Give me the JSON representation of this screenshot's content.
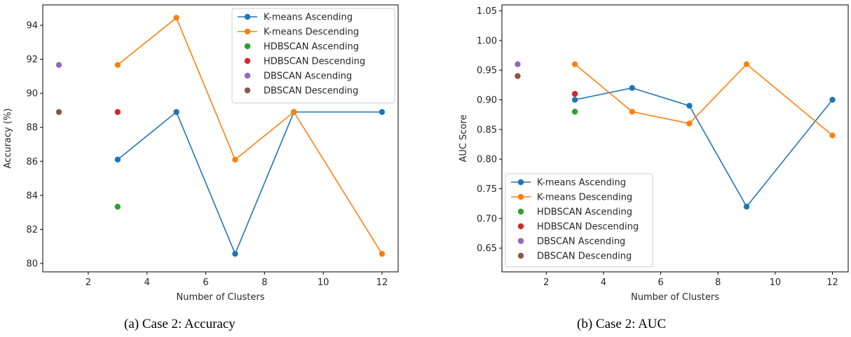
{
  "captions": [
    "(a) Case 2: Accuracy",
    "(b) Case 2: AUC"
  ],
  "chart_data": [
    {
      "type": "line",
      "xlabel": "Number of Clusters",
      "ylabel": "Accuracy (%)",
      "xlim": [
        0.45,
        12.55
      ],
      "ylim": [
        79.5,
        95.2
      ],
      "xticks": [
        2,
        4,
        6,
        8,
        10,
        12
      ],
      "yticks": [
        80,
        82,
        84,
        86,
        88,
        90,
        92,
        94
      ],
      "ytick_decimals": 0,
      "legend_position": "upper right",
      "series": [
        {
          "name": "K-means Ascending",
          "mode": "line",
          "color": "#1f77b4",
          "x": [
            3,
            5,
            7,
            9,
            12
          ],
          "y": [
            86.1,
            88.9,
            80.56,
            88.9,
            88.9
          ]
        },
        {
          "name": "K-means Descending",
          "mode": "line",
          "color": "#ff7f0e",
          "x": [
            3,
            5,
            7,
            9,
            12
          ],
          "y": [
            91.67,
            94.44,
            86.1,
            88.9,
            80.56
          ]
        },
        {
          "name": "HDBSCAN Ascending",
          "mode": "point",
          "color": "#2ca02c",
          "x": [
            3
          ],
          "y": [
            83.33
          ]
        },
        {
          "name": "HDBSCAN Descending",
          "mode": "point",
          "color": "#d62728",
          "x": [
            3
          ],
          "y": [
            88.9
          ]
        },
        {
          "name": "DBSCAN Ascending",
          "mode": "point",
          "color": "#9467bd",
          "x": [
            1
          ],
          "y": [
            91.67
          ]
        },
        {
          "name": "DBSCAN Descending",
          "mode": "point",
          "color": "#8c564b",
          "x": [
            1
          ],
          "y": [
            88.9
          ]
        }
      ]
    },
    {
      "type": "line",
      "xlabel": "Number of Clusters",
      "ylabel": "AUC Score",
      "xlim": [
        0.45,
        12.55
      ],
      "ylim": [
        0.61,
        1.06
      ],
      "xticks": [
        2,
        4,
        6,
        8,
        10,
        12
      ],
      "yticks": [
        0.65,
        0.7,
        0.75,
        0.8,
        0.85,
        0.9,
        0.95,
        1.0,
        1.05
      ],
      "ytick_decimals": 2,
      "legend_position": "lower left",
      "series": [
        {
          "name": "K-means Ascending",
          "mode": "line",
          "color": "#1f77b4",
          "x": [
            3,
            5,
            7,
            9,
            12
          ],
          "y": [
            0.9,
            0.92,
            0.89,
            0.72,
            0.9
          ]
        },
        {
          "name": "K-means Descending",
          "mode": "line",
          "color": "#ff7f0e",
          "x": [
            3,
            5,
            7,
            9,
            12
          ],
          "y": [
            0.96,
            0.88,
            0.86,
            0.96,
            0.84
          ]
        },
        {
          "name": "HDBSCAN Ascending",
          "mode": "point",
          "color": "#2ca02c",
          "x": [
            3
          ],
          "y": [
            0.88
          ]
        },
        {
          "name": "HDBSCAN Descending",
          "mode": "point",
          "color": "#d62728",
          "x": [
            3
          ],
          "y": [
            0.91
          ]
        },
        {
          "name": "DBSCAN Ascending",
          "mode": "point",
          "color": "#9467bd",
          "x": [
            1
          ],
          "y": [
            0.96
          ]
        },
        {
          "name": "DBSCAN Descending",
          "mode": "point",
          "color": "#8c564b",
          "x": [
            1
          ],
          "y": [
            0.94
          ]
        }
      ]
    }
  ]
}
